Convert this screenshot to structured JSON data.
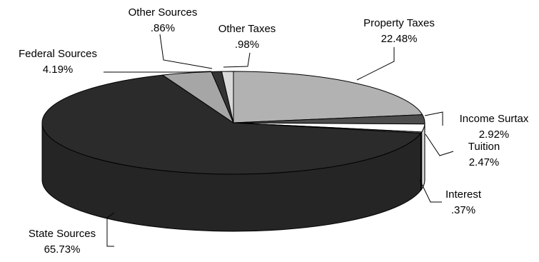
{
  "chart_data": {
    "type": "pie",
    "title": "",
    "three_d": true,
    "start_angle_deg": 90,
    "direction": "clockwise",
    "slices": [
      {
        "label": "Property Taxes",
        "display": "22.48%",
        "value": 22.48,
        "color": "#b2b2b2"
      },
      {
        "label": "Income Surtax",
        "display": "2.92%",
        "value": 2.92,
        "color": "#4d4d4d"
      },
      {
        "label": "Tuition",
        "display": "2.47%",
        "value": 2.47,
        "color": "#ffffff"
      },
      {
        "label": "Interest",
        "display": ".37%",
        "value": 0.37,
        "color": "#808080"
      },
      {
        "label": "State Sources",
        "display": "65.73%",
        "value": 65.73,
        "color": "#2b2b2b"
      },
      {
        "label": "Federal Sources",
        "display": "4.19%",
        "value": 4.19,
        "color": "#a6a6a6"
      },
      {
        "label": "Other Sources",
        "display": ".86%",
        "value": 0.86,
        "color": "#333333"
      },
      {
        "label": "Other Taxes",
        "display": ".98%",
        "value": 0.98,
        "color": "#d9d9d9"
      }
    ],
    "legend": "none"
  }
}
